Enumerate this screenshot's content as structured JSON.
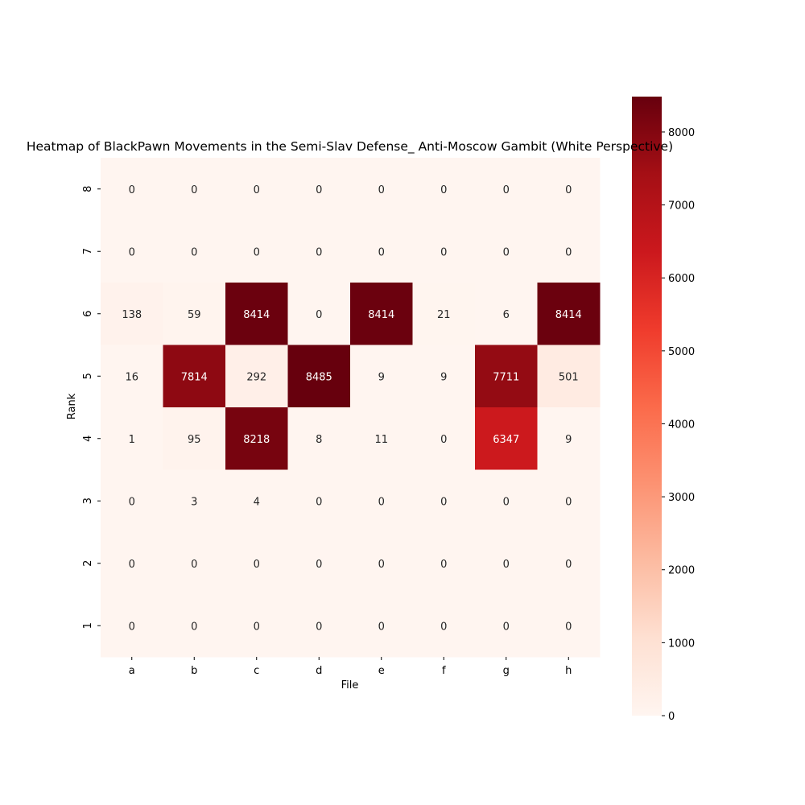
{
  "chart_data": {
    "type": "heatmap",
    "title": "Heatmap of BlackPawn Movements in the Semi-Slav Defense_ Anti-Moscow Gambit (White Perspective)",
    "xlabel": "File",
    "ylabel": "Rank",
    "x_categories": [
      "a",
      "b",
      "c",
      "d",
      "e",
      "f",
      "g",
      "h"
    ],
    "y_categories": [
      "8",
      "7",
      "6",
      "5",
      "4",
      "3",
      "2",
      "1"
    ],
    "values": [
      [
        0,
        0,
        0,
        0,
        0,
        0,
        0,
        0
      ],
      [
        0,
        0,
        0,
        0,
        0,
        0,
        0,
        0
      ],
      [
        138,
        59,
        8414,
        0,
        8414,
        21,
        6,
        8414
      ],
      [
        16,
        7814,
        292,
        8485,
        9,
        9,
        7711,
        501
      ],
      [
        1,
        95,
        8218,
        8,
        11,
        0,
        6347,
        9
      ],
      [
        0,
        3,
        4,
        0,
        0,
        0,
        0,
        0
      ],
      [
        0,
        0,
        0,
        0,
        0,
        0,
        0,
        0
      ],
      [
        0,
        0,
        0,
        0,
        0,
        0,
        0,
        0
      ]
    ],
    "colormap": "Reds",
    "color_range": [
      0,
      8485
    ],
    "colorbar_ticks": [
      0,
      1000,
      2000,
      3000,
      4000,
      5000,
      6000,
      7000,
      8000
    ],
    "annotations": true
  }
}
